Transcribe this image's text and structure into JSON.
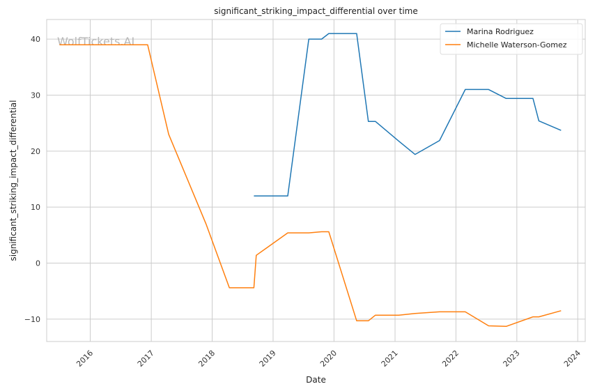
{
  "chart_data": {
    "type": "line",
    "title": "significant_striking_impact_differential over time",
    "xlabel": "Date",
    "ylabel": "significant_striking_impact_differential",
    "watermark": "WolfTickets.AI",
    "xlim": [
      "2015-04-15",
      "2024-02-15"
    ],
    "ylim": [
      -14,
      43.5
    ],
    "x_ticks": [
      "2016-01-01",
      "2017-01-01",
      "2018-01-01",
      "2019-01-01",
      "2020-01-01",
      "2021-01-01",
      "2022-01-01",
      "2023-01-01",
      "2024-01-01"
    ],
    "x_tick_labels": [
      "2016",
      "2017",
      "2018",
      "2019",
      "2020",
      "2021",
      "2022",
      "2023",
      "2024"
    ],
    "y_ticks": [
      -10,
      0,
      10,
      20,
      30,
      40
    ],
    "y_tick_labels": [
      "−10",
      "0",
      "10",
      "20",
      "30",
      "40"
    ],
    "grid": true,
    "legend_position": "top-right",
    "series": [
      {
        "name": "Marina Rodriguez",
        "color": "#1f77b4",
        "points": [
          {
            "x": "2018-09-08",
            "y": 12.0
          },
          {
            "x": "2019-03-30",
            "y": 12.0
          },
          {
            "x": "2019-08-03",
            "y": 40.0
          },
          {
            "x": "2019-10-19",
            "y": 40.0
          },
          {
            "x": "2019-12-01",
            "y": 41.0
          },
          {
            "x": "2020-05-16",
            "y": 41.0
          },
          {
            "x": "2020-07-25",
            "y": 25.3
          },
          {
            "x": "2020-09-05",
            "y": 25.3
          },
          {
            "x": "2021-01-23",
            "y": 21.8
          },
          {
            "x": "2021-05-01",
            "y": 19.4
          },
          {
            "x": "2021-09-25",
            "y": 21.9
          },
          {
            "x": "2022-02-26",
            "y": 31.0
          },
          {
            "x": "2022-07-16",
            "y": 31.0
          },
          {
            "x": "2022-10-29",
            "y": 29.4
          },
          {
            "x": "2023-04-08",
            "y": 29.4
          },
          {
            "x": "2023-05-13",
            "y": 25.4
          },
          {
            "x": "2023-09-23",
            "y": 23.7
          }
        ]
      },
      {
        "name": "Michelle Waterson-Gomez",
        "color": "#ff7f0e",
        "points": [
          {
            "x": "2015-07-01",
            "y": 39.0
          },
          {
            "x": "2016-12-10",
            "y": 39.0
          },
          {
            "x": "2017-04-15",
            "y": 23.0
          },
          {
            "x": "2017-11-25",
            "y": 7.0
          },
          {
            "x": "2018-04-14",
            "y": -4.4
          },
          {
            "x": "2018-09-08",
            "y": -4.4
          },
          {
            "x": "2018-09-22",
            "y": 1.4
          },
          {
            "x": "2019-03-30",
            "y": 5.4
          },
          {
            "x": "2019-08-03",
            "y": 5.4
          },
          {
            "x": "2019-10-19",
            "y": 5.6
          },
          {
            "x": "2019-12-01",
            "y": 5.6
          },
          {
            "x": "2020-05-16",
            "y": -10.3
          },
          {
            "x": "2020-07-25",
            "y": -10.3
          },
          {
            "x": "2020-09-05",
            "y": -9.3
          },
          {
            "x": "2021-01-23",
            "y": -9.3
          },
          {
            "x": "2021-05-01",
            "y": -9.0
          },
          {
            "x": "2021-09-25",
            "y": -8.7
          },
          {
            "x": "2022-02-26",
            "y": -8.7
          },
          {
            "x": "2022-07-16",
            "y": -11.2
          },
          {
            "x": "2022-10-29",
            "y": -11.3
          },
          {
            "x": "2023-04-08",
            "y": -9.6
          },
          {
            "x": "2023-05-13",
            "y": -9.6
          },
          {
            "x": "2023-09-23",
            "y": -8.5
          }
        ]
      }
    ]
  }
}
